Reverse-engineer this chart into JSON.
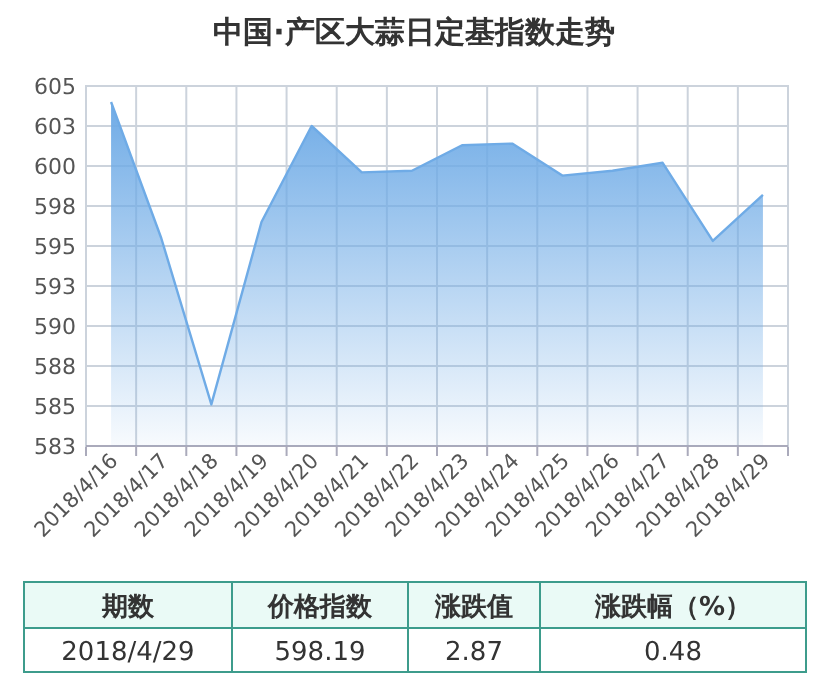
{
  "chart_data": {
    "type": "area",
    "title": "中国·产区大蒜日定基指数走势",
    "categories": [
      "2018/4/16",
      "2018/4/17",
      "2018/4/18",
      "2018/4/19",
      "2018/4/20",
      "2018/4/21",
      "2018/4/22",
      "2018/4/23",
      "2018/4/24",
      "2018/4/25",
      "2018/4/26",
      "2018/4/27",
      "2018/4/28",
      "2018/4/29"
    ],
    "series": [
      {
        "color": "#6fabe6",
        "values": [
          604.0,
          595.5,
          585.1,
          596.5,
          602.5,
          599.6,
          599.7,
          601.3,
          601.4,
          599.4,
          599.7,
          600.2,
          595.32,
          598.19
        ]
      }
    ],
    "ylim": [
      582.5,
      605
    ],
    "yticks": [
      {
        "value": 582.5,
        "label": "583"
      },
      585,
      {
        "value": 587.5,
        "label": "588"
      },
      590,
      {
        "value": 592.5,
        "label": "593"
      },
      595,
      {
        "value": 597.5,
        "label": "598"
      },
      600,
      {
        "value": 602.5,
        "label": "603"
      },
      605
    ],
    "grid": true,
    "annotations": [
      "期数",
      "价格指数",
      "涨跌值",
      "涨跌幅（%）",
      "2018/4/29",
      "598.19",
      "2.87",
      "0.48"
    ]
  }
}
